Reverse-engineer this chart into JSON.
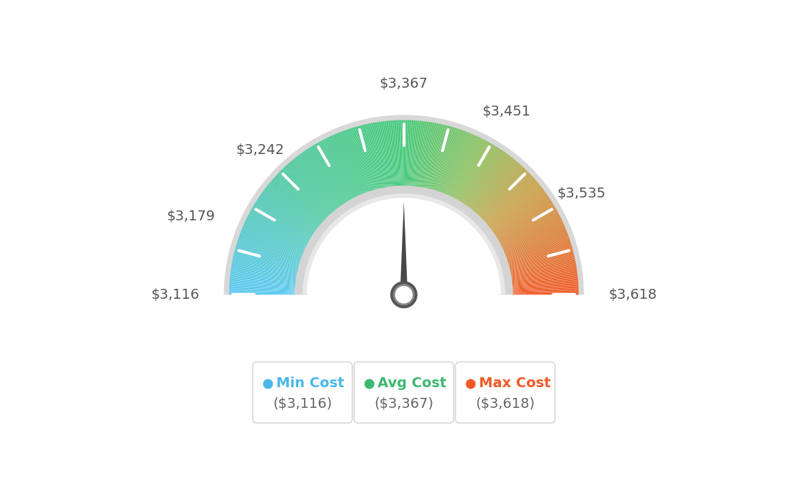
{
  "min_val": 3116,
  "max_val": 3618,
  "avg_val": 3367,
  "needle_value": 3367,
  "tick_labels": [
    "$3,116",
    "$3,179",
    "$3,242",
    "$3,367",
    "$3,451",
    "$3,535",
    "$3,618"
  ],
  "tick_values": [
    3116,
    3179,
    3242,
    3367,
    3451,
    3535,
    3618
  ],
  "legend_items": [
    {
      "label": "Min Cost",
      "value": "($3,116)",
      "color": "#4ab8e8"
    },
    {
      "label": "Avg Cost",
      "value": "($3,367)",
      "color": "#3db870"
    },
    {
      "label": "Max Cost",
      "value": "($3,618)",
      "color": "#f05a28"
    }
  ],
  "color_stops": [
    [
      0.0,
      "#5bc8f0"
    ],
    [
      0.25,
      "#4ec8a0"
    ],
    [
      0.5,
      "#45c878"
    ],
    [
      0.65,
      "#8cc060"
    ],
    [
      0.78,
      "#c8a048"
    ],
    [
      1.0,
      "#f05a28"
    ]
  ],
  "outer_border_color": "#d8d8d8",
  "inner_ring_color": "#e0e0e0",
  "inner_ring_inner_color": "#ececec",
  "needle_color": "#484848",
  "needle_center_color": "#565656",
  "label_color": "#555555",
  "bg_color": "#ffffff",
  "box_border_color": "#d8d8d8",
  "box_value_color": "#666666"
}
